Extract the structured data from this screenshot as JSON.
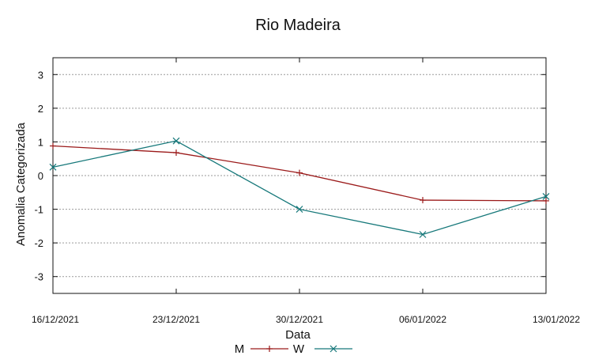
{
  "chart_data": {
    "type": "line",
    "title": "Rio Madeira",
    "xlabel": "Data",
    "ylabel": "Anomalia Categorizada",
    "categories": [
      "16/12/2021",
      "23/12/2021",
      "30/12/2021",
      "06/01/2022",
      "13/01/2022"
    ],
    "yticks": [
      "3",
      "2",
      "1",
      "0",
      "-1",
      "-2",
      "-3"
    ],
    "ylim": [
      -3.5,
      3.5
    ],
    "grid": true,
    "legend_position": "bottom",
    "series": [
      {
        "name": "M",
        "color": "#9b1a1a",
        "marker": "plus",
        "values": [
          0.88,
          0.68,
          0.08,
          -0.73,
          -0.75
        ]
      },
      {
        "name": "W",
        "color": "#16787a",
        "marker": "cross",
        "values": [
          0.25,
          1.03,
          -1.0,
          -1.75,
          -0.62
        ]
      }
    ]
  }
}
